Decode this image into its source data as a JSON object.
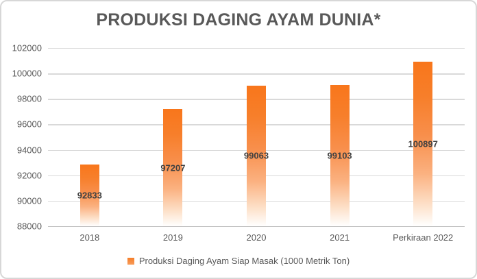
{
  "chart_data": {
    "type": "bar",
    "title": "PRODUKSI DAGING AYAM DUNIA*",
    "categories": [
      "2018",
      "2019",
      "2020",
      "2021",
      "Perkiraan 2022"
    ],
    "values": [
      92833,
      97207,
      99063,
      99103,
      100897
    ],
    "series": [
      {
        "name": "Produksi Daging Ayam Siap Masak (1000 Metrik Ton)",
        "values": [
          92833,
          97207,
          99063,
          99103,
          100897
        ]
      }
    ],
    "xlabel": "",
    "ylabel": "",
    "ylim": [
      88000,
      102000
    ],
    "ytick_step": 2000,
    "ytick_labels_top_to_bottom": [
      "102000",
      "100000",
      "98000",
      "96000",
      "94000",
      "92000",
      "90000",
      "88000"
    ],
    "grid": true,
    "legend_position": "bottom",
    "data_labels_position": "inside-center"
  },
  "legend": {
    "label": "Produksi Daging Ayam Siap Masak (1000 Metrik Ton)"
  },
  "colors": {
    "background": "#ffffff",
    "chart_border": "#d7d7d7",
    "bar_top": "#f8761b",
    "bar_bottom": "#ffffff",
    "gridline": "#d9d9d9",
    "axis_line": "#bfbfbf",
    "title_text": "#595959",
    "tick_text": "#595959",
    "data_label_text": "#404040",
    "legend_swatch": "#f57e28"
  }
}
